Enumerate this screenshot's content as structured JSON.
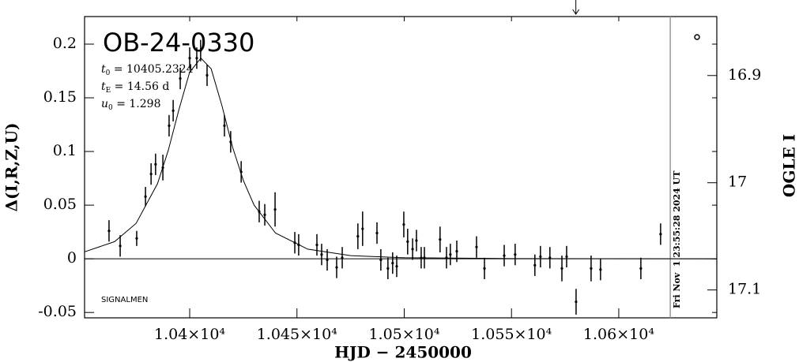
{
  "chart_data": {
    "type": "scatter",
    "title": "OB-24-0330",
    "signalmen": "SIGNALMEN",
    "xlabel": "HJD − 2450000",
    "ylabel": "Δ(I,R,Z,U)",
    "y2label": "OGLE I",
    "parameters": [
      {
        "symbol": "t",
        "subscript": "0",
        "value": " = 10405.2324"
      },
      {
        "symbol": "t",
        "subscript": "E",
        "value": " = 14.56  d"
      },
      {
        "symbol": "u",
        "subscript": "0",
        "value": " = 1.298"
      }
    ],
    "xlim": [
      10351,
      10645.7
    ],
    "ylim": [
      -0.055,
      0.2257
    ],
    "y2lim": [
      17.126,
      16.845
    ],
    "xticks": [
      {
        "value": 10400,
        "label": "1.04×10⁴"
      },
      {
        "value": 10450,
        "label": "1.045×10⁴"
      },
      {
        "value": 10500,
        "label": "1.05×10⁴"
      },
      {
        "value": 10550,
        "label": "1.055×10⁴"
      },
      {
        "value": 10600,
        "label": "1.06×10⁴"
      }
    ],
    "yticks": [
      -0.05,
      0,
      0.05,
      0.1,
      0.15,
      0.2
    ],
    "y2ticks": [
      16.9,
      17,
      17.1
    ],
    "series": [
      {
        "color": "#000000",
        "x": [
          10362.4,
          10367.6,
          10375.3,
          10379.4,
          10382,
          10384.1,
          10387.5,
          10390.4,
          10392.3,
          10395.6,
          10400,
          10403.3,
          10405.1,
          10408.1,
          10416.2,
          10419.1,
          10424,
          10432.4,
          10435,
          10439.8,
          10449,
          10450.8,
          10459.3,
          10461.5,
          10464.1,
          10468.5,
          10471.1,
          10478.4,
          10480.6,
          10487.3,
          10489.1,
          10492.4,
          10494.6,
          10496.5,
          10499.8,
          10501.6,
          10503.9,
          10505.7,
          10507.9,
          10509.4,
          10516.7,
          10519.7,
          10521.5,
          10524.5,
          10533.7,
          10537.4,
          10546.6,
          10551.7,
          10560.9,
          10563.5,
          10567.9,
          10573.5,
          10575.7,
          10580.1,
          10587.1,
          10591.5,
          10610.3,
          10619.5
        ],
        "values": [
          0.026,
          0.012,
          0.019,
          0.058,
          0.079,
          0.088,
          0.085,
          0.124,
          0.138,
          0.168,
          0.187,
          0.187,
          0.194,
          0.171,
          0.124,
          0.109,
          0.081,
          0.044,
          0.041,
          0.046,
          0.015,
          0.013,
          0.013,
          0.004,
          -0.001,
          -0.008,
          0.001,
          0.021,
          0.028,
          0.024,
          -0.001,
          -0.009,
          -0.004,
          -0.007,
          0.032,
          0.016,
          0.009,
          0.017,
          0.001,
          0.001,
          0.018,
          0.001,
          0.004,
          0.007,
          0.011,
          -0.009,
          0.003,
          0.004,
          -0.006,
          0.002,
          0.001,
          -0.009,
          0.002,
          -0.04,
          -0.009,
          -0.01,
          -0.009,
          0.023
        ],
        "errors": [
          0.01,
          0.01,
          0.007,
          0.009,
          0.01,
          0.01,
          0.012,
          0.01,
          0.01,
          0.01,
          0.01,
          0.01,
          0.01,
          0.01,
          0.01,
          0.01,
          0.01,
          0.01,
          0.01,
          0.016,
          0.01,
          0.01,
          0.01,
          0.01,
          0.01,
          0.01,
          0.01,
          0.012,
          0.016,
          0.01,
          0.01,
          0.01,
          0.01,
          0.01,
          0.012,
          0.012,
          0.01,
          0.01,
          0.01,
          0.01,
          0.012,
          0.01,
          0.01,
          0.01,
          0.01,
          0.01,
          0.01,
          0.01,
          0.01,
          0.01,
          0.01,
          0.012,
          0.01,
          0.012,
          0.012,
          0.01,
          0.01,
          0.01
        ]
      }
    ],
    "model": {
      "x": [
        10351,
        10365,
        10375,
        10385,
        10390,
        10395,
        10400,
        10405.23,
        10410,
        10415,
        10420,
        10425,
        10430,
        10440,
        10455,
        10475,
        10500,
        10550,
        10645.7
      ],
      "values": [
        0.0065,
        0.016,
        0.033,
        0.07,
        0.101,
        0.139,
        0.174,
        0.187,
        0.177,
        0.143,
        0.104,
        0.073,
        0.05,
        0.024,
        0.009,
        0.003,
        0.001,
        0.0002,
        0
      ]
    },
    "date_line": {
      "x": 10624,
      "label": "Fri Nov  1 23:55:28 2024 UT",
      "color": "#999999"
    },
    "arrow": {
      "x": 10580
    }
  }
}
